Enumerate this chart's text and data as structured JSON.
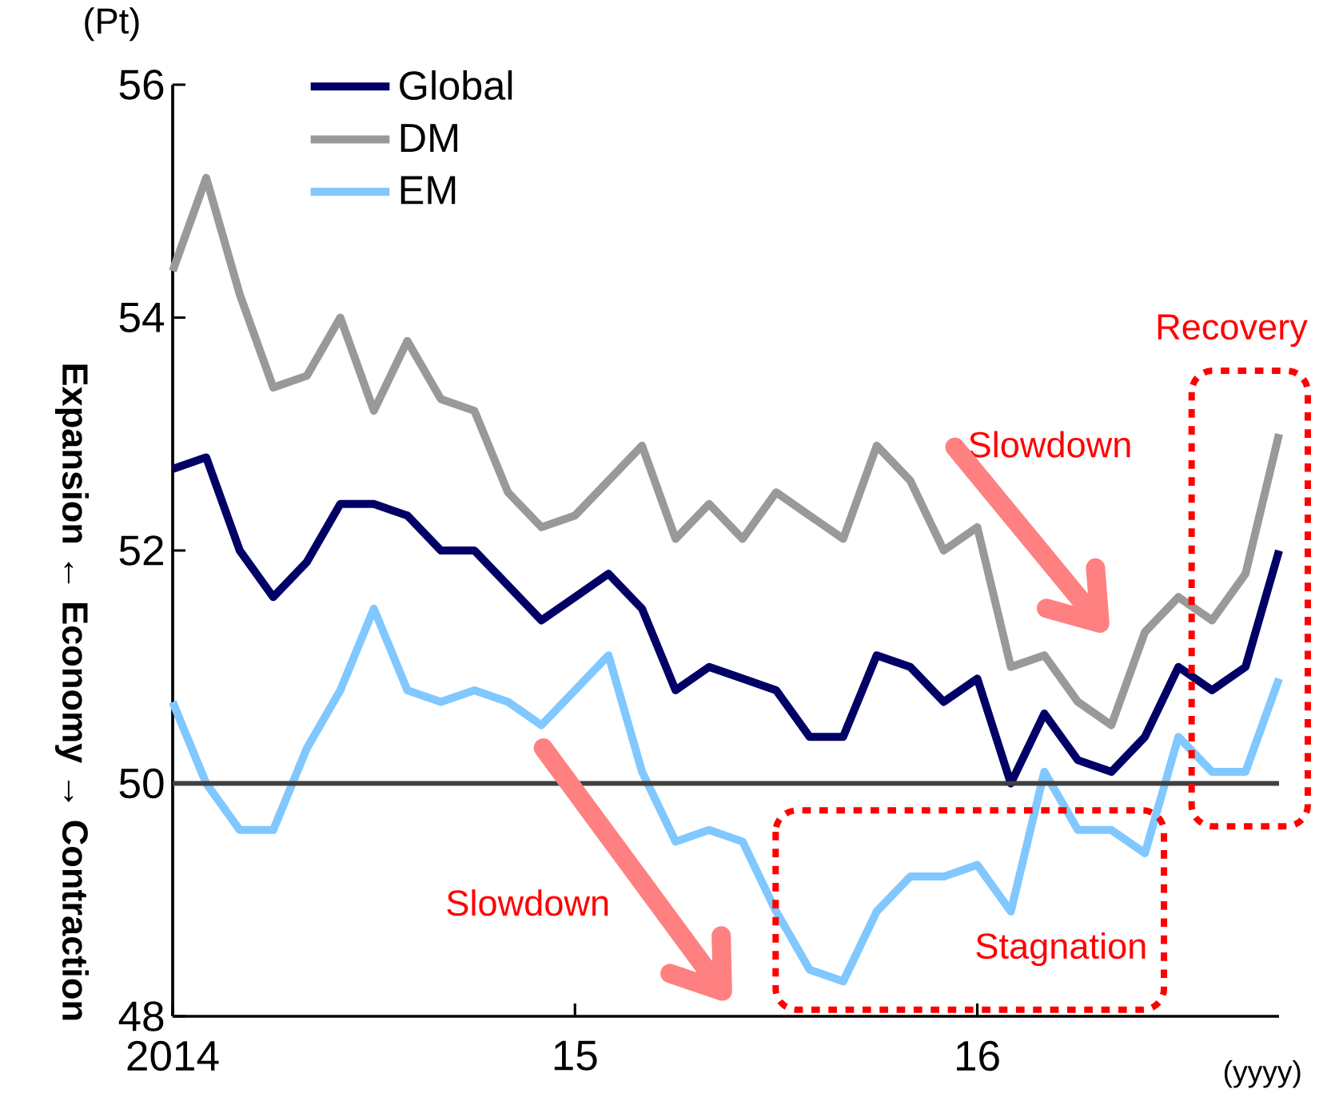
{
  "chart_data": {
    "type": "line",
    "ylabel": "(Pt)",
    "xlabel": "(yyyy)",
    "x": [
      "2014-01",
      "2014-02",
      "2014-03",
      "2014-04",
      "2014-05",
      "2014-06",
      "2014-07",
      "2014-08",
      "2014-09",
      "2014-10",
      "2014-11",
      "2014-12",
      "2015-01",
      "2015-02",
      "2015-03",
      "2015-04",
      "2015-05",
      "2015-06",
      "2015-07",
      "2015-08",
      "2015-09",
      "2015-10",
      "2015-11",
      "2015-12",
      "2016-01",
      "2016-02",
      "2016-03",
      "2016-04",
      "2016-05",
      "2016-06",
      "2016-07",
      "2016-08",
      "2016-09",
      "2016-10"
    ],
    "series": [
      {
        "name": "Global",
        "color": "#000066",
        "values": [
          52.7,
          52.8,
          52.0,
          51.6,
          51.9,
          52.4,
          52.4,
          52.3,
          52.0,
          52.0,
          51.7,
          51.4,
          51.6,
          51.8,
          51.5,
          50.8,
          51.0,
          50.9,
          50.8,
          50.4,
          50.4,
          51.1,
          51.0,
          50.7,
          50.9,
          50.0,
          50.6,
          50.2,
          50.1,
          50.4,
          51.0,
          50.8,
          51.0,
          52.0
        ]
      },
      {
        "name": "DM",
        "color": "#999999",
        "values": [
          54.4,
          55.2,
          54.2,
          53.4,
          53.5,
          54.0,
          53.2,
          53.8,
          53.3,
          53.2,
          52.5,
          52.2,
          52.3,
          52.6,
          52.9,
          52.1,
          52.4,
          52.1,
          52.5,
          52.3,
          52.1,
          52.9,
          52.6,
          52.0,
          52.2,
          51.0,
          51.1,
          50.7,
          50.5,
          51.3,
          51.6,
          51.4,
          51.8,
          53.0
        ]
      },
      {
        "name": "EM",
        "color": "#80c8ff",
        "values": [
          50.7,
          50.0,
          49.6,
          49.6,
          50.3,
          50.8,
          51.5,
          50.8,
          50.7,
          50.8,
          50.7,
          50.5,
          50.8,
          51.1,
          50.1,
          49.5,
          49.6,
          49.5,
          48.9,
          48.4,
          48.3,
          48.9,
          49.2,
          49.2,
          49.3,
          48.9,
          50.1,
          49.6,
          49.6,
          49.4,
          50.4,
          50.1,
          50.1,
          50.9
        ]
      }
    ],
    "xlim": [
      "2014-01",
      "2016-10"
    ],
    "xticks": [
      {
        "value": "2014-01",
        "label": "2014"
      },
      {
        "value": "2015-01",
        "label": "15"
      },
      {
        "value": "2016-01",
        "label": "16"
      }
    ],
    "ylim": [
      48,
      56
    ],
    "yticks": [
      48,
      50,
      52,
      54,
      56
    ],
    "ref_lines": [
      {
        "axis": "y",
        "value": 50,
        "color": "#404040"
      }
    ],
    "legend": "top left",
    "annotations": [
      "Expansion ← Economy → Contraction",
      "Slowdown",
      "Slowdown",
      "Stagnation",
      "Recovery"
    ]
  }
}
